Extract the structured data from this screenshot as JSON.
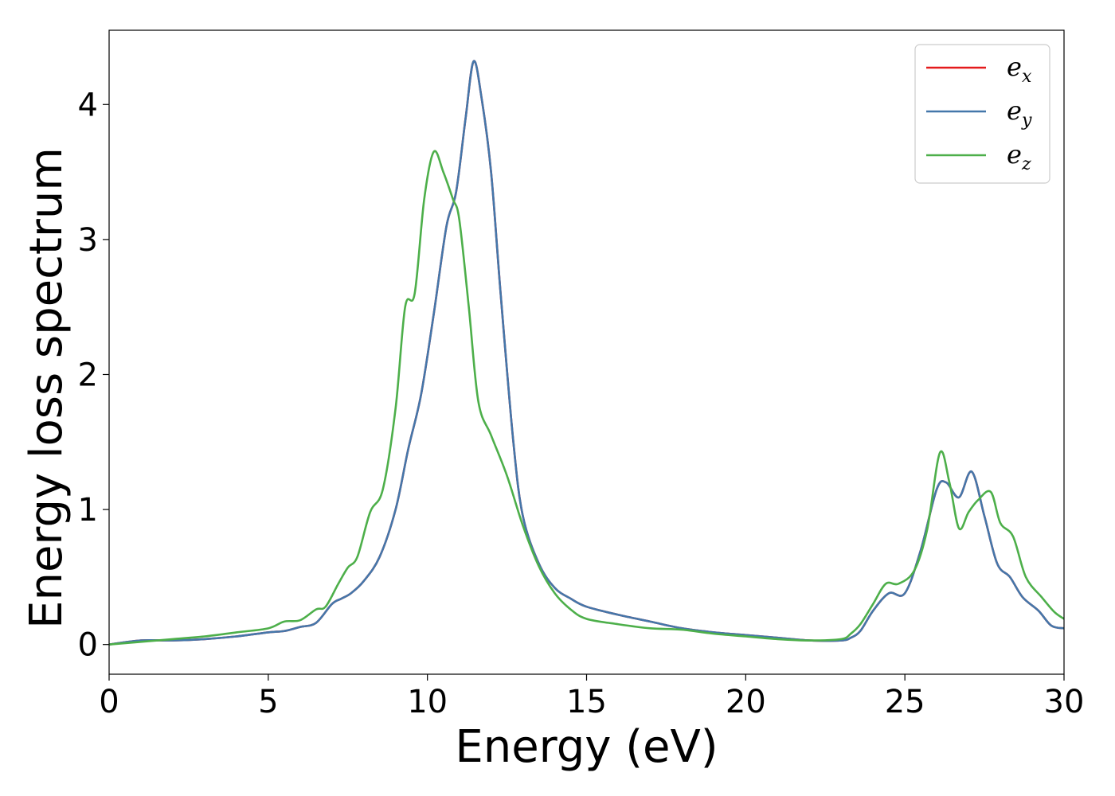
{
  "chart_data": {
    "type": "line",
    "title": "",
    "xlabel": "Energy (eV)",
    "ylabel": "Energy loss spectrum",
    "xlim": [
      0,
      30
    ],
    "ylim": [
      -0.22,
      4.55
    ],
    "xticks": [
      0,
      5,
      10,
      15,
      20,
      25,
      30
    ],
    "xtick_labels": [
      "0",
      "5",
      "10",
      "15",
      "20",
      "25",
      "30"
    ],
    "yticks": [
      0,
      1,
      2,
      3,
      4
    ],
    "ytick_labels": [
      "0",
      "1",
      "2",
      "3",
      "4"
    ],
    "grid": false,
    "legend_position": "top-right",
    "series": [
      {
        "name": "e",
        "subscript": "x",
        "color": "#e41a1c",
        "x": [
          0,
          1,
          2,
          3,
          4,
          5,
          5.5,
          6,
          6.5,
          7,
          7.3,
          7.6,
          8,
          8.5,
          9,
          9.4,
          9.8,
          10.2,
          10.6,
          10.9,
          11.2,
          11.45,
          11.7,
          12,
          12.3,
          12.7,
          13,
          13.5,
          14,
          14.5,
          15,
          16,
          17,
          18,
          19,
          20,
          21,
          22,
          23,
          23.3,
          23.6,
          24,
          24.5,
          25,
          25.5,
          26,
          26.3,
          26.7,
          27.1,
          27.5,
          27.9,
          28.3,
          28.7,
          29.2,
          29.6,
          30
        ],
        "y": [
          0.0,
          0.03,
          0.03,
          0.04,
          0.06,
          0.09,
          0.1,
          0.13,
          0.16,
          0.3,
          0.34,
          0.38,
          0.47,
          0.65,
          1.0,
          1.45,
          1.85,
          2.45,
          3.1,
          3.35,
          3.9,
          4.32,
          4.05,
          3.5,
          2.6,
          1.5,
          0.95,
          0.6,
          0.42,
          0.34,
          0.28,
          0.22,
          0.17,
          0.12,
          0.09,
          0.07,
          0.05,
          0.03,
          0.03,
          0.05,
          0.1,
          0.25,
          0.38,
          0.38,
          0.7,
          1.15,
          1.2,
          1.09,
          1.28,
          0.95,
          0.6,
          0.5,
          0.35,
          0.25,
          0.14,
          0.12
        ]
      },
      {
        "name": "e",
        "subscript": "y",
        "color": "#4477aa",
        "x": [
          0,
          1,
          2,
          3,
          4,
          5,
          5.5,
          6,
          6.5,
          7,
          7.3,
          7.6,
          8,
          8.5,
          9,
          9.4,
          9.8,
          10.2,
          10.6,
          10.9,
          11.2,
          11.45,
          11.7,
          12,
          12.3,
          12.7,
          13,
          13.5,
          14,
          14.5,
          15,
          16,
          17,
          18,
          19,
          20,
          21,
          22,
          23,
          23.3,
          23.6,
          24,
          24.5,
          25,
          25.5,
          26,
          26.3,
          26.7,
          27.1,
          27.5,
          27.9,
          28.3,
          28.7,
          29.2,
          29.6,
          30
        ],
        "y": [
          0.0,
          0.03,
          0.03,
          0.04,
          0.06,
          0.09,
          0.1,
          0.13,
          0.16,
          0.3,
          0.34,
          0.38,
          0.47,
          0.65,
          1.0,
          1.45,
          1.85,
          2.45,
          3.1,
          3.35,
          3.9,
          4.32,
          4.05,
          3.5,
          2.6,
          1.5,
          0.95,
          0.6,
          0.42,
          0.34,
          0.28,
          0.22,
          0.17,
          0.12,
          0.09,
          0.07,
          0.05,
          0.03,
          0.03,
          0.05,
          0.1,
          0.25,
          0.38,
          0.38,
          0.7,
          1.15,
          1.2,
          1.09,
          1.28,
          0.95,
          0.6,
          0.5,
          0.35,
          0.25,
          0.14,
          0.12
        ]
      },
      {
        "name": "e",
        "subscript": "z",
        "color": "#4daf4a",
        "x": [
          0,
          1,
          2,
          3,
          4,
          5,
          5.5,
          6,
          6.5,
          6.8,
          7.2,
          7.5,
          7.8,
          8.2,
          8.6,
          9.0,
          9.3,
          9.6,
          9.9,
          10.2,
          10.5,
          10.8,
          11.0,
          11.3,
          11.6,
          12.0,
          12.5,
          13,
          13.5,
          14,
          14.5,
          15,
          16,
          17,
          18,
          19,
          20,
          21,
          22,
          23,
          23.3,
          23.6,
          24,
          24.4,
          24.8,
          25.3,
          25.7,
          26.1,
          26.4,
          26.7,
          27.0,
          27.3,
          27.7,
          28.0,
          28.4,
          28.8,
          29.3,
          29.7,
          30
        ],
        "y": [
          0.0,
          0.02,
          0.04,
          0.06,
          0.09,
          0.12,
          0.17,
          0.18,
          0.26,
          0.28,
          0.45,
          0.57,
          0.65,
          0.98,
          1.15,
          1.75,
          2.5,
          2.6,
          3.3,
          3.65,
          3.5,
          3.3,
          3.15,
          2.5,
          1.8,
          1.55,
          1.25,
          0.88,
          0.58,
          0.38,
          0.26,
          0.19,
          0.15,
          0.12,
          0.11,
          0.08,
          0.06,
          0.04,
          0.03,
          0.04,
          0.08,
          0.15,
          0.3,
          0.45,
          0.45,
          0.55,
          0.85,
          1.42,
          1.2,
          0.86,
          0.98,
          1.07,
          1.13,
          0.9,
          0.8,
          0.5,
          0.35,
          0.24,
          0.19
        ]
      }
    ]
  }
}
